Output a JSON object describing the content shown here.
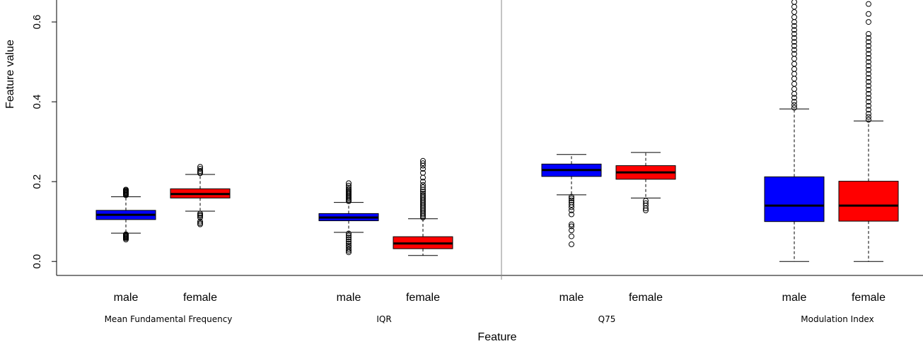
{
  "chart_data": {
    "type": "boxplot",
    "xlabel": "Feature",
    "ylabel": "Feature value",
    "ylim": [
      -0.035,
      0.655
    ],
    "yticks": [
      0.0,
      0.2,
      0.4,
      0.6
    ],
    "ytick_labels": [
      "0.0",
      "0.2",
      "0.4",
      "0.6"
    ],
    "grid": false,
    "legend": "none",
    "colors": {
      "male": "#0000ff",
      "female": "#ff0000",
      "whisker": "#000000"
    },
    "groups": [
      {
        "label": "Mean Fundamental Frequency",
        "boxes": [
          {
            "category": "male",
            "color": "#0000ff",
            "whisker_low": 0.071,
            "q1": 0.105,
            "median": 0.117,
            "q3": 0.128,
            "whisker_high": 0.162,
            "outliers": [
              0.055,
              0.058,
              0.06,
              0.062,
              0.064,
              0.066,
              0.068,
              0.166,
              0.168,
              0.17,
              0.172,
              0.174,
              0.176,
              0.178,
              0.18
            ]
          },
          {
            "category": "female",
            "color": "#ff0000",
            "whisker_low": 0.126,
            "q1": 0.159,
            "median": 0.169,
            "q3": 0.182,
            "whisker_high": 0.218,
            "outliers": [
              0.093,
              0.096,
              0.1,
              0.11,
              0.114,
              0.117,
              0.12,
              0.221,
              0.224,
              0.227,
              0.232,
              0.237
            ]
          }
        ]
      },
      {
        "label": "IQR",
        "boxes": [
          {
            "category": "male",
            "color": "#0000ff",
            "whisker_low": 0.073,
            "q1": 0.102,
            "median": 0.11,
            "q3": 0.12,
            "whisker_high": 0.148,
            "outliers": [
              0.023,
              0.027,
              0.031,
              0.036,
              0.04,
              0.045,
              0.05,
              0.055,
              0.06,
              0.065,
              0.07,
              0.151,
              0.154,
              0.157,
              0.16,
              0.163,
              0.166,
              0.169,
              0.172,
              0.175,
              0.178,
              0.181,
              0.185,
              0.19,
              0.196
            ]
          },
          {
            "category": "female",
            "color": "#ff0000",
            "whisker_low": 0.015,
            "q1": 0.032,
            "median": 0.045,
            "q3": 0.062,
            "whisker_high": 0.107,
            "outliers": [
              0.11,
              0.114,
              0.118,
              0.122,
              0.126,
              0.13,
              0.134,
              0.138,
              0.142,
              0.146,
              0.15,
              0.154,
              0.158,
              0.162,
              0.166,
              0.17,
              0.175,
              0.18,
              0.186,
              0.192,
              0.2,
              0.21,
              0.222,
              0.232,
              0.24,
              0.246,
              0.252
            ]
          }
        ]
      },
      {
        "label": "Q75",
        "boxes": [
          {
            "category": "male",
            "color": "#0000ff",
            "whisker_low": 0.167,
            "q1": 0.213,
            "median": 0.229,
            "q3": 0.244,
            "whisker_high": 0.268,
            "outliers": [
              0.043,
              0.063,
              0.078,
              0.088,
              0.093,
              0.118,
              0.128,
              0.136,
              0.142,
              0.148,
              0.153,
              0.158,
              0.162
            ]
          },
          {
            "category": "female",
            "color": "#ff0000",
            "whisker_low": 0.159,
            "q1": 0.206,
            "median": 0.223,
            "q3": 0.24,
            "whisker_high": 0.273,
            "outliers": [
              0.128,
              0.133,
              0.14,
              0.146,
              0.152
            ]
          }
        ]
      },
      {
        "label": "Modulation Index",
        "boxes": [
          {
            "category": "male",
            "color": "#0000ff",
            "whisker_low": 0.0,
            "q1": 0.1,
            "median": 0.14,
            "q3": 0.212,
            "whisker_high": 0.382,
            "outliers": [
              0.385,
              0.392,
              0.4,
              0.41,
              0.42,
              0.432,
              0.445,
              0.458,
              0.47,
              0.482,
              0.495,
              0.508,
              0.52,
              0.53,
              0.54,
              0.55,
              0.56,
              0.57,
              0.58,
              0.59,
              0.6,
              0.612,
              0.625,
              0.638,
              0.65
            ]
          },
          {
            "category": "female",
            "color": "#ff0000",
            "whisker_low": 0.0,
            "q1": 0.101,
            "median": 0.14,
            "q3": 0.201,
            "whisker_high": 0.352,
            "outliers": [
              0.355,
              0.362,
              0.37,
              0.38,
              0.39,
              0.4,
              0.41,
              0.42,
              0.43,
              0.44,
              0.45,
              0.46,
              0.47,
              0.48,
              0.49,
              0.5,
              0.51,
              0.52,
              0.53,
              0.54,
              0.55,
              0.56,
              0.57,
              0.6,
              0.62,
              0.645
            ]
          }
        ]
      }
    ]
  }
}
